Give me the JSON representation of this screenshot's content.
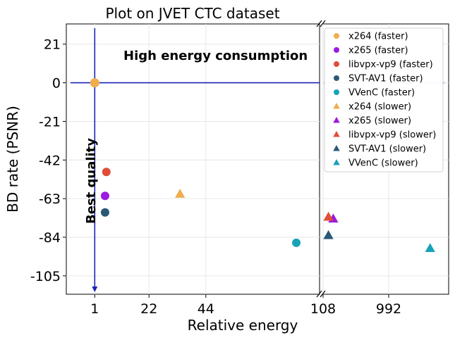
{
  "chart_data": {
    "type": "scatter",
    "title": "Plot on JVET CTC dataset",
    "xlabel": "Relative energy",
    "ylabel": "BD rate (PSNR)",
    "x_scale": "broken-linear",
    "x_segments": [
      {
        "range": [
          -10,
          88
        ],
        "ticks": [
          1,
          22,
          44
        ]
      },
      {
        "range": [
          108,
          1800
        ],
        "ticks": [
          108,
          992
        ]
      }
    ],
    "x_break_between": [
      88,
      108
    ],
    "xticks": [
      "1",
      "22",
      "44",
      "108",
      "992"
    ],
    "ylim": [
      -115,
      32
    ],
    "yticks": [
      21,
      0,
      -21,
      -42,
      -63,
      -84,
      -105
    ],
    "grid": true,
    "legend_position": "top-right",
    "reference_point": {
      "x": 1,
      "y": 0,
      "color": "#f0ad4e"
    },
    "annotations": [
      {
        "text": "High energy consumption",
        "orientation": "horizontal"
      },
      {
        "text": "Best quality",
        "orientation": "vertical"
      }
    ],
    "series": [
      {
        "name": "x264 (faster)",
        "marker": "circle",
        "color": "#f0ad4e",
        "points": []
      },
      {
        "name": "x265 (faster)",
        "marker": "circle",
        "color": "#9b1bdf",
        "points": [
          {
            "x": 5,
            "y": -61.5
          }
        ]
      },
      {
        "name": "libvpx-vp9 (faster)",
        "marker": "circle",
        "color": "#e04e39",
        "points": [
          {
            "x": 5.5,
            "y": -48.5
          }
        ]
      },
      {
        "name": "SVT-AV1 (faster)",
        "marker": "circle",
        "color": "#2b5876",
        "points": [
          {
            "x": 5,
            "y": -70.5
          }
        ]
      },
      {
        "name": "VVenC (faster)",
        "marker": "circle",
        "color": "#17a2b8",
        "points": [
          {
            "x": 79,
            "y": -87
          }
        ]
      },
      {
        "name": "x264 (slower)",
        "marker": "triangle",
        "color": "#f0ad4e",
        "points": [
          {
            "x": 34,
            "y": -60.5
          }
        ]
      },
      {
        "name": "x265 (slower)",
        "marker": "triangle",
        "color": "#9b1bdf",
        "points": [
          {
            "x": 245,
            "y": -74
          }
        ]
      },
      {
        "name": "libvpx-vp9 (slower)",
        "marker": "triangle",
        "color": "#e04e39",
        "points": [
          {
            "x": 180,
            "y": -73
          }
        ]
      },
      {
        "name": "SVT-AV1 (slower)",
        "marker": "triangle",
        "color": "#2b5876",
        "points": [
          {
            "x": 180,
            "y": -83
          }
        ]
      },
      {
        "name": "VVenC (slower)",
        "marker": "triangle",
        "color": "#17a2b8",
        "points": [
          {
            "x": 1550,
            "y": -90
          }
        ]
      }
    ]
  }
}
